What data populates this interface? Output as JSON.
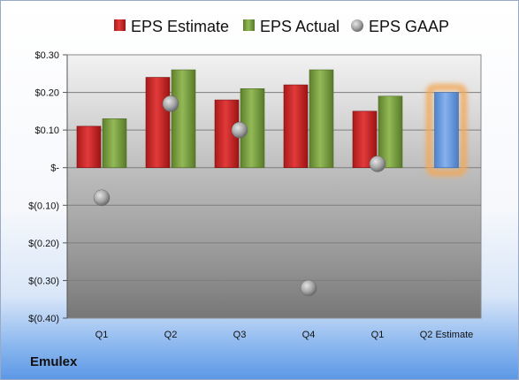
{
  "company": "Emulex",
  "colors": {
    "estimate": "#d42a2a",
    "actual": "#7fa443",
    "gaap": "#a9a9a9",
    "q2_estimate": "#6f9fe0",
    "q2_estimate_glow": "#f3a857"
  },
  "chart_data": {
    "type": "bar",
    "title": "",
    "xlabel": "",
    "ylabel": "",
    "ylim": [
      -0.4,
      0.3
    ],
    "y_ticks": [
      0.3,
      0.2,
      0.1,
      0,
      -0.1,
      -0.2,
      -0.3,
      -0.4
    ],
    "y_tick_labels": [
      "$0.30",
      "$0.20",
      "$0.10",
      "$-",
      "$(0.10)",
      "$(0.20)",
      "$(0.30)",
      "$(0.40)"
    ],
    "categories": [
      "Q1",
      "Q2",
      "Q3",
      "Q4",
      "Q1",
      "Q2 Estimate"
    ],
    "series": [
      {
        "name": "EPS Estimate",
        "type": "bar",
        "values": [
          0.11,
          0.24,
          0.18,
          0.22,
          0.15,
          null
        ]
      },
      {
        "name": "EPS Actual",
        "type": "bar",
        "values": [
          0.13,
          0.26,
          0.21,
          0.26,
          0.19,
          null
        ]
      },
      {
        "name": "EPS GAAP",
        "type": "scatter",
        "values": [
          -0.08,
          0.17,
          0.1,
          -0.32,
          0.01,
          null
        ]
      }
    ],
    "q2_estimate_value": 0.2,
    "legend": [
      "EPS Estimate",
      "EPS Actual",
      "EPS GAAP"
    ],
    "legend_position": "top",
    "grid": true
  }
}
